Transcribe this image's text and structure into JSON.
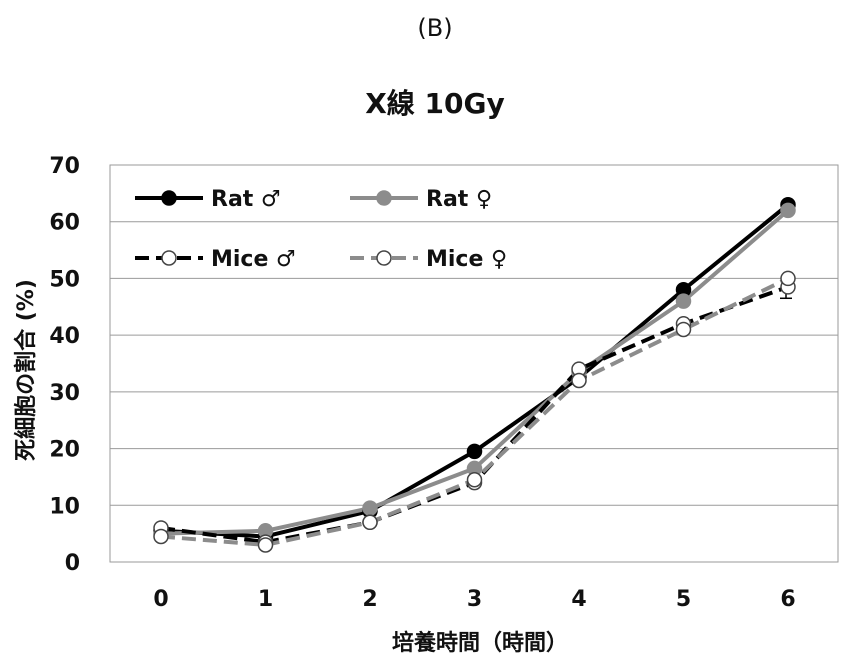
{
  "panel_label": "(B)",
  "chart_data": {
    "type": "line",
    "title": "X線 10Gy",
    "xlabel": "培養時間（時間）",
    "ylabel": "死細胞の割合 (%)",
    "x": [
      0,
      1,
      2,
      3,
      4,
      5,
      6
    ],
    "xlim": [
      0,
      6
    ],
    "ylim": [
      0,
      70
    ],
    "yticks": [
      0,
      10,
      20,
      30,
      40,
      50,
      60,
      70
    ],
    "grid": "horizontal",
    "legend_position": "top-left",
    "series": [
      {
        "name": "Rat ♂",
        "values": [
          5.5,
          4.5,
          9.0,
          19.5,
          32.5,
          48.0,
          63.0
        ],
        "color": "#000000",
        "dash": false,
        "marker": "filled"
      },
      {
        "name": "Rat ♀",
        "values": [
          5.0,
          5.5,
          9.5,
          16.5,
          33.5,
          46.0,
          62.0
        ],
        "color": "#8c8c8c",
        "dash": false,
        "marker": "filled"
      },
      {
        "name": "Mice ♂",
        "values": [
          6.0,
          3.5,
          7.0,
          14.0,
          34.0,
          42.0,
          48.5
        ],
        "color": "#000000",
        "dash": true,
        "marker": "open"
      },
      {
        "name": "Mice ♀",
        "values": [
          4.5,
          3.0,
          7.0,
          14.5,
          32.0,
          41.0,
          50.0
        ],
        "color": "#8c8c8c",
        "dash": true,
        "marker": "open"
      }
    ]
  }
}
